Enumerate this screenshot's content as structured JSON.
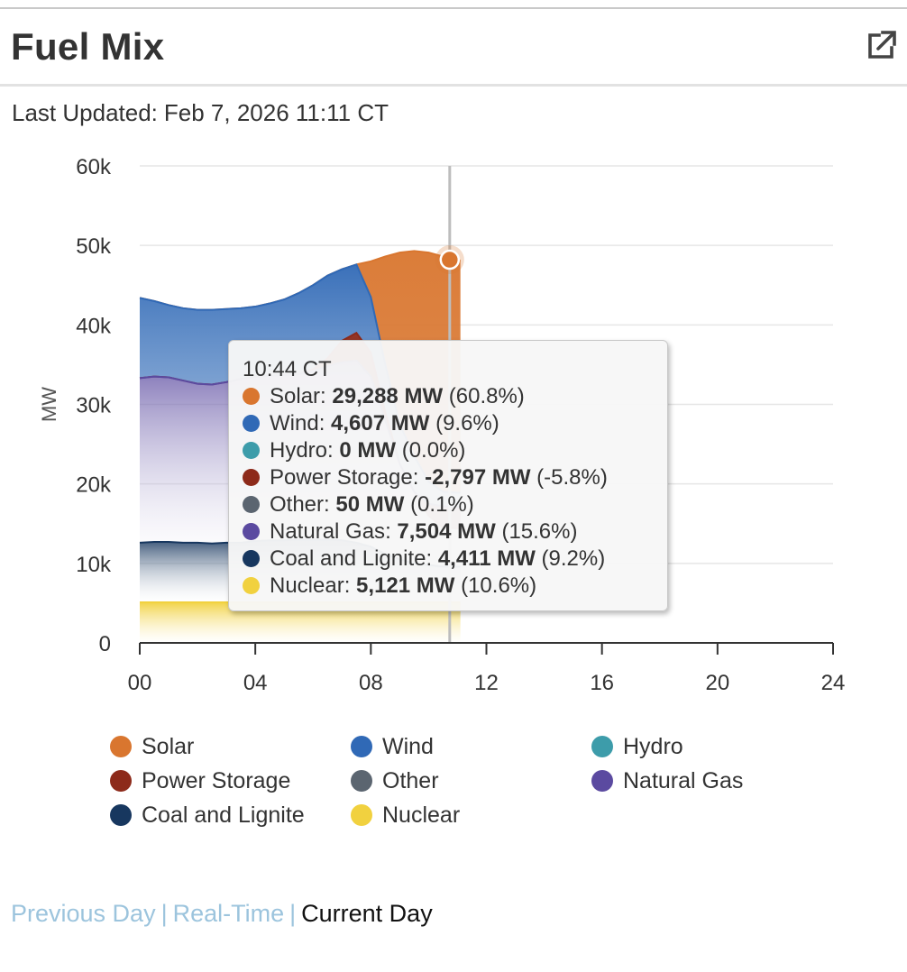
{
  "header": {
    "title": "Fuel Mix",
    "external_icon": "external-link-icon"
  },
  "updated": {
    "label": "Last Updated:",
    "value": "Feb 7, 2026 11:11 CT"
  },
  "colors": {
    "solar": "#d9762f",
    "wind": "#3069b6",
    "hydro": "#3d9caa",
    "power_storage": "#8d2a1a",
    "other": "#5b6570",
    "natural_gas": "#5b4aa0",
    "coal_lignite": "#17375f",
    "nuclear": "#f1d13f"
  },
  "tooltip": {
    "time": "10:44 CT",
    "rows": [
      {
        "name": "Solar",
        "value": "29,288 MW",
        "pct": "(60.8%)",
        "color": "#d9762f"
      },
      {
        "name": "Wind",
        "value": "4,607 MW",
        "pct": "(9.6%)",
        "color": "#3069b6"
      },
      {
        "name": "Hydro",
        "value": "0 MW",
        "pct": "(0.0%)",
        "color": "#3d9caa"
      },
      {
        "name": "Power Storage",
        "value": "-2,797 MW",
        "pct": "(-5.8%)",
        "color": "#8d2a1a"
      },
      {
        "name": "Other",
        "value": "50 MW",
        "pct": "(0.1%)",
        "color": "#5b6570"
      },
      {
        "name": "Natural Gas",
        "value": "7,504 MW",
        "pct": "(15.6%)",
        "color": "#5b4aa0"
      },
      {
        "name": "Coal and Lignite",
        "value": "4,411 MW",
        "pct": "(9.2%)",
        "color": "#17375f"
      },
      {
        "name": "Nuclear",
        "value": "5,121 MW",
        "pct": "(10.6%)",
        "color": "#f1d13f"
      }
    ]
  },
  "legend": [
    {
      "label": "Solar",
      "color": "#d9762f"
    },
    {
      "label": "Wind",
      "color": "#3069b6"
    },
    {
      "label": "Hydro",
      "color": "#3d9caa"
    },
    {
      "label": "Power Storage",
      "color": "#8d2a1a"
    },
    {
      "label": "Other",
      "color": "#5b6570"
    },
    {
      "label": "Natural Gas",
      "color": "#5b4aa0"
    },
    {
      "label": "Coal and Lignite",
      "color": "#17375f"
    },
    {
      "label": "Nuclear",
      "color": "#f1d13f"
    }
  ],
  "nav": {
    "previous_day": "Previous Day",
    "real_time": "Real-Time",
    "current_day": "Current Day",
    "separator": "|"
  },
  "chart_data": {
    "type": "area",
    "ylabel": "MW",
    "xlabel": "",
    "xlim": [
      0,
      24
    ],
    "ylim": [
      0,
      60000
    ],
    "x_ticks": [
      "00",
      "04",
      "08",
      "12",
      "16",
      "20",
      "24"
    ],
    "y_ticks": [
      "0",
      "10k",
      "20k",
      "30k",
      "40k",
      "50k",
      "60k"
    ],
    "grid": true,
    "legend_position": "bottom",
    "crosshair_x": 10.73,
    "crosshair_total": 48200,
    "x": [
      0,
      0.5,
      1,
      1.5,
      2,
      2.5,
      3,
      3.5,
      4,
      4.5,
      5,
      5.5,
      6,
      6.5,
      7,
      7.5,
      8,
      8.5,
      9,
      9.5,
      10,
      10.5,
      11,
      11.1
    ],
    "stack_tops": [
      {
        "name": "Nuclear",
        "values": [
          5100,
          5100,
          5100,
          5100,
          5100,
          5100,
          5100,
          5100,
          5100,
          5100,
          5100,
          5100,
          5100,
          5100,
          5100,
          5100,
          5100,
          5100,
          5100,
          5100,
          5100,
          5100,
          5100,
          5100
        ]
      },
      {
        "name": "Coal and Lignite",
        "values": [
          12600,
          12700,
          12700,
          12600,
          12600,
          12500,
          12600,
          12600,
          12800,
          12900,
          12900,
          13000,
          13000,
          13000,
          12900,
          12600,
          12100,
          11200,
          10500,
          10000,
          9800,
          9600,
          9600,
          9600
        ]
      },
      {
        "name": "Natural Gas",
        "values": [
          33300,
          33500,
          33400,
          33000,
          32600,
          32500,
          32800,
          33200,
          33500,
          33600,
          33700,
          33800,
          34200,
          34800,
          35300,
          35500,
          33500,
          28000,
          22500,
          19000,
          17500,
          17200,
          17100,
          17100
        ]
      },
      {
        "name": "Power Storage",
        "values": [
          33300,
          33500,
          33400,
          33000,
          32600,
          32500,
          32800,
          33200,
          33500,
          33600,
          33700,
          33800,
          34400,
          35800,
          38000,
          39000,
          36500,
          29000,
          22500,
          19000,
          16000,
          14500,
          14400,
          14400
        ]
      },
      {
        "name": "Wind",
        "values": [
          43400,
          43000,
          42500,
          42100,
          41900,
          41900,
          42000,
          42100,
          42300,
          42700,
          43200,
          44000,
          45000,
          46200,
          47000,
          47600,
          43500,
          35000,
          27500,
          23500,
          20300,
          19000,
          18900,
          18900
        ]
      },
      {
        "name": "Solar",
        "values": [
          43400,
          43000,
          42500,
          42100,
          41900,
          41900,
          42000,
          42100,
          42300,
          42700,
          43200,
          44000,
          45000,
          46200,
          47000,
          47600,
          48000,
          48600,
          49100,
          49300,
          49100,
          48600,
          48100,
          48100
        ]
      }
    ]
  }
}
